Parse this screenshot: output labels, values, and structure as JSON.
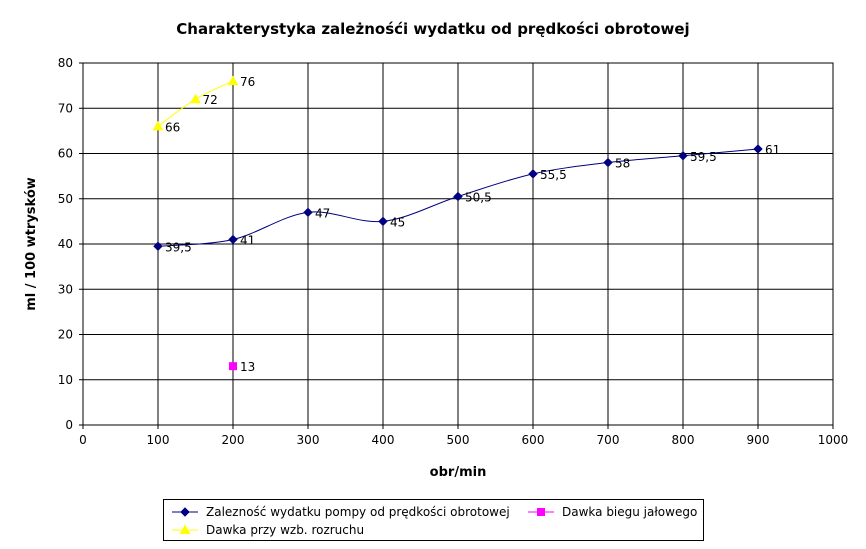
{
  "chart_data": {
    "type": "line",
    "title": "Charakterystyka zależnośći wydatku od prędkości obrotowej",
    "xlabel": "obr/min",
    "ylabel": "ml / 100 wtrysków",
    "xlim": [
      0,
      1000
    ],
    "ylim": [
      0,
      80
    ],
    "x_ticks": [
      0,
      100,
      200,
      300,
      400,
      500,
      600,
      700,
      800,
      900,
      1000
    ],
    "y_ticks": [
      0,
      10,
      20,
      30,
      40,
      50,
      60,
      70,
      80
    ],
    "grid": true,
    "legend_position": "bottom",
    "series": [
      {
        "name": "Zalezność wydatku pompy od prędkości obrotowej",
        "color": "#000080",
        "marker": "diamond",
        "x": [
          100,
          200,
          300,
          400,
          500,
          600,
          700,
          800,
          900
        ],
        "y": [
          39.5,
          41,
          47,
          45,
          50.5,
          55.5,
          58,
          59.5,
          61
        ],
        "labels": [
          "39,5",
          "41",
          "47",
          "45",
          "50,5",
          "55,5",
          "58",
          "59,5",
          "61"
        ]
      },
      {
        "name": "Dawka biegu jałowego",
        "color": "#ff00ff",
        "marker": "square",
        "x": [
          200
        ],
        "y": [
          13
        ],
        "labels": [
          "13"
        ]
      },
      {
        "name": "Dawka przy wzb. rozruchu",
        "color": "#ffff00",
        "marker": "triangle",
        "x": [
          100,
          150,
          200
        ],
        "y": [
          66,
          72,
          76
        ],
        "labels": [
          "66",
          "72",
          "76"
        ]
      }
    ]
  }
}
